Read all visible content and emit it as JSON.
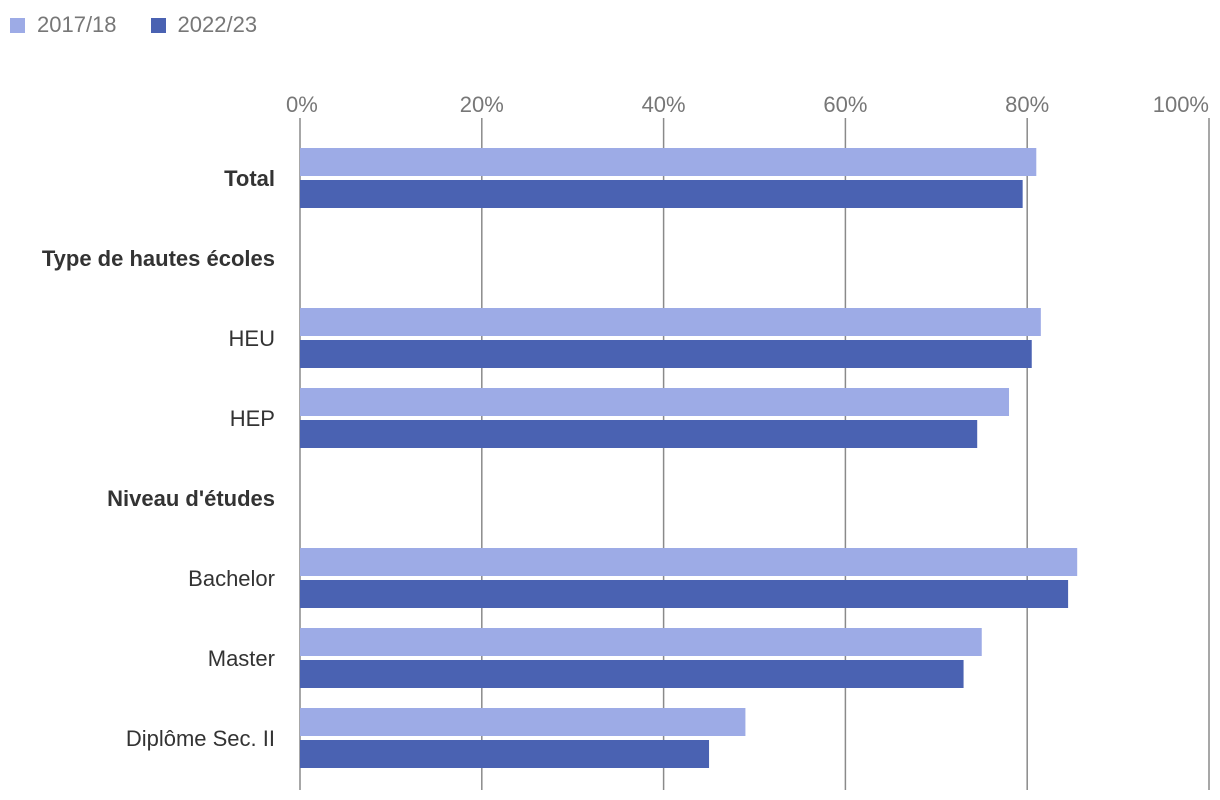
{
  "chart_data": {
    "type": "bar",
    "orientation": "horizontal",
    "categories": [
      "Total",
      "Type de hautes écoles",
      "HEU",
      "HEP",
      "Niveau d'études",
      "Bachelor",
      "Master",
      "Diplôme Sec. II"
    ],
    "category_bold": [
      true,
      true,
      false,
      false,
      true,
      false,
      false,
      false
    ],
    "series": [
      {
        "name": "2017/18",
        "color": "#9dabe6",
        "values": [
          81,
          null,
          81.5,
          78,
          null,
          85.5,
          75,
          49
        ]
      },
      {
        "name": "2022/23",
        "color": "#4a62b2",
        "values": [
          79.5,
          null,
          80.5,
          74.5,
          null,
          84.5,
          73,
          45
        ]
      }
    ],
    "x_ticks": [
      "0%",
      "20%",
      "40%",
      "60%",
      "80%",
      "100%"
    ],
    "x_tick_values": [
      0,
      20,
      40,
      60,
      80,
      100
    ],
    "xlim": [
      0,
      100
    ],
    "xlabel": "",
    "ylabel": "",
    "grid": true,
    "legend_position": "top-left"
  }
}
